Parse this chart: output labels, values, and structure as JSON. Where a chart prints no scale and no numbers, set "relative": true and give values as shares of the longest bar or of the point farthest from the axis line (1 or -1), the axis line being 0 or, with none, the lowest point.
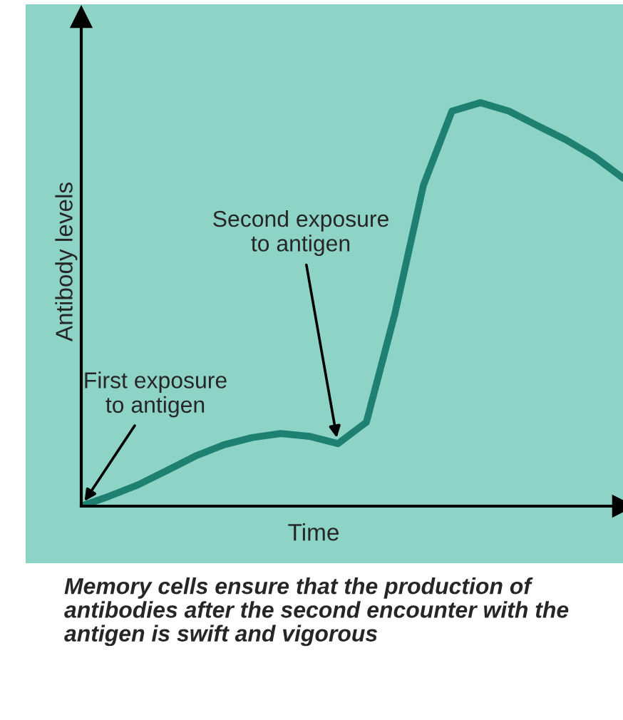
{
  "chart_data": {
    "type": "line",
    "relative": true,
    "xlabel": "Time",
    "ylabel": "Antibody levels",
    "categories": [
      null,
      null,
      null,
      null,
      null,
      null,
      null,
      null,
      null,
      null,
      null,
      null,
      null,
      null,
      null,
      null,
      null,
      null,
      null,
      null
    ],
    "series": [
      {
        "color": "#1e8070",
        "values": [
          0,
          0.025,
          0.053,
          0.088,
          0.124,
          0.152,
          0.17,
          0.18,
          0.173,
          0.155,
          0.208,
          0.477,
          0.795,
          0.979,
          1.0,
          0.979,
          0.943,
          0.908,
          0.866,
          0.813
        ]
      }
    ],
    "annotations": [
      "First exposure\nto antigen",
      "Second exposure\nto antigen",
      "Memory cells ensure that the production of antibodies after the second encounter with the antigen is swift and vigorous"
    ],
    "grid": false,
    "legend": false
  }
}
